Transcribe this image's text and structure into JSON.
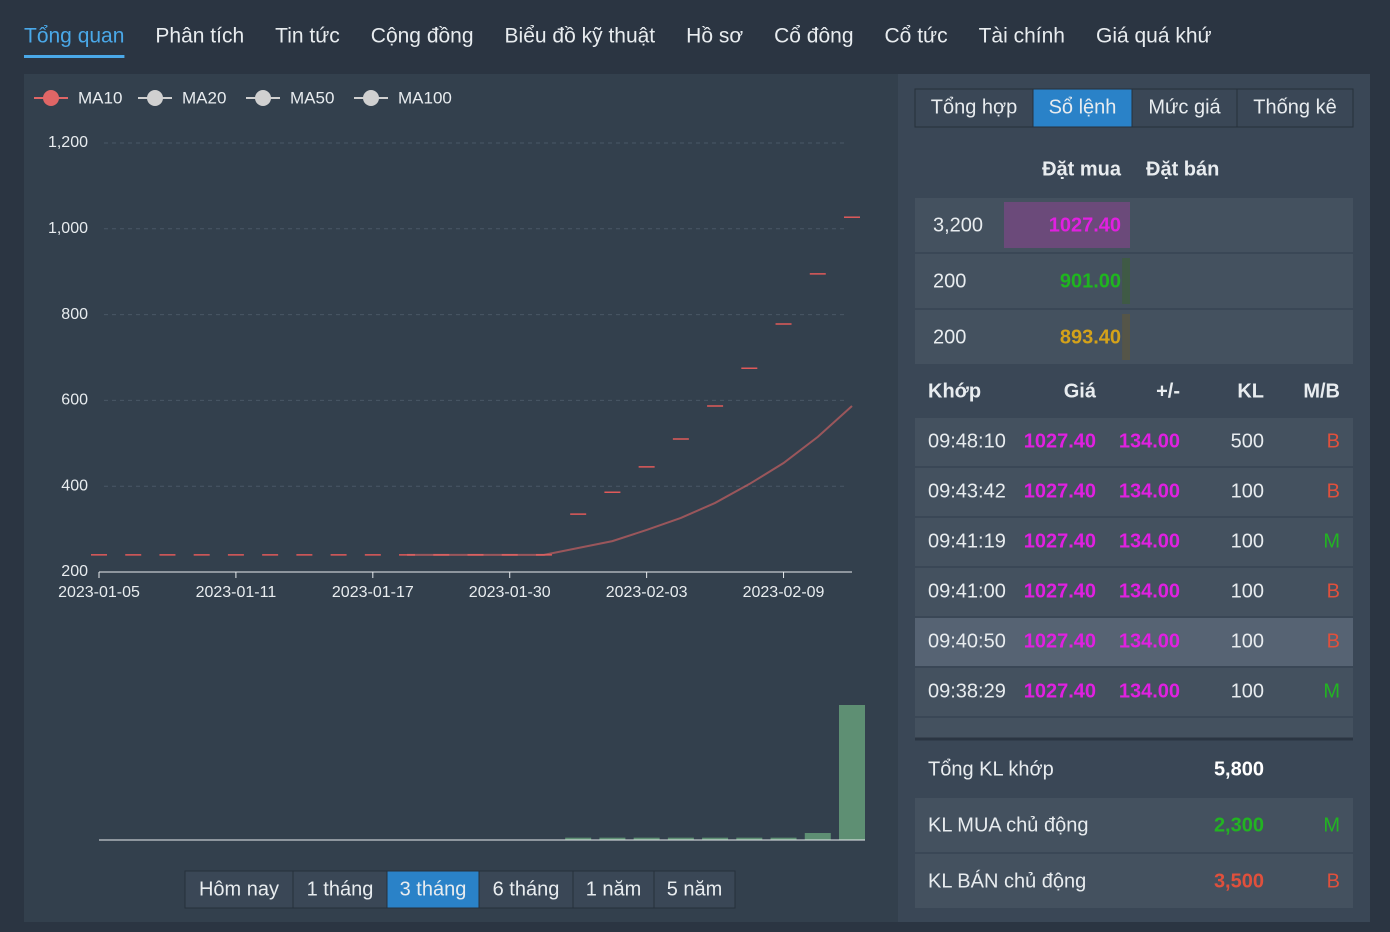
{
  "tabs": {
    "items": [
      "Tổng quan",
      "Phân tích",
      "Tin tức",
      "Cộng đồng",
      "Biểu đồ kỹ thuật",
      "Hồ sơ",
      "Cổ đông",
      "Cổ tức",
      "Tài chính",
      "Giá quá khứ"
    ],
    "active": 0
  },
  "chart_data": {
    "type": "line",
    "categories": [
      "2023-01-05",
      null,
      null,
      null,
      "2023-01-11",
      null,
      null,
      null,
      "2023-01-17",
      null,
      null,
      null,
      "2023-01-30",
      null,
      null,
      null,
      "2023-02-03",
      null,
      null,
      null,
      "2023-02-09",
      null,
      null
    ],
    "values": [
      240,
      240,
      240,
      240,
      240,
      240,
      240,
      240,
      240,
      240,
      240,
      240,
      240,
      240,
      335,
      386,
      445,
      510,
      587,
      675,
      778,
      895,
      1027
    ],
    "color": "#e05a5a",
    "series": [
      {
        "name": "MA10",
        "color": "#e06666",
        "values": [
          null,
          null,
          null,
          null,
          null,
          null,
          null,
          null,
          null,
          240,
          240,
          240,
          240,
          240,
          256,
          272,
          298,
          326,
          361,
          405,
          454,
          515,
          587
        ]
      },
      {
        "name": "MA20",
        "color": "#d0d0d0",
        "values": [
          null,
          null,
          null,
          null,
          null,
          null,
          null,
          null,
          null,
          null,
          null,
          null,
          null,
          null,
          null,
          null,
          null,
          null,
          null,
          null,
          null,
          null,
          null
        ]
      },
      {
        "name": "MA50",
        "color": "#d0d0d0",
        "values": [
          null,
          null,
          null,
          null,
          null,
          null,
          null,
          null,
          null,
          null,
          null,
          null,
          null,
          null,
          null,
          null,
          null,
          null,
          null,
          null,
          null,
          null,
          null
        ]
      },
      {
        "name": "MA100",
        "color": "#d0d0d0",
        "values": [
          null,
          null,
          null,
          null,
          null,
          null,
          null,
          null,
          null,
          null,
          null,
          null,
          null,
          null,
          null,
          null,
          null,
          null,
          null,
          null,
          null,
          null,
          null
        ]
      }
    ],
    "ylim": [
      200,
      1200
    ],
    "yticks": [
      200,
      400,
      600,
      800,
      {
        "value": 1000,
        "label": "1,000"
      },
      {
        "value": 1200,
        "label": "1,200"
      }
    ],
    "grid": true,
    "volume": [
      0,
      0,
      0,
      0,
      0,
      0,
      0,
      0,
      0,
      0,
      0,
      0,
      0,
      0,
      100,
      100,
      100,
      100,
      100,
      100,
      100,
      300,
      5800
    ],
    "volume_color": "#5e8f73",
    "volume_lim": [
      0,
      5800
    ]
  },
  "range_buttons": {
    "items": [
      "Hôm nay",
      "1 tháng",
      "3 tháng",
      "6 tháng",
      "1 năm",
      "5 năm"
    ],
    "active": 2
  },
  "panel": {
    "tabs": {
      "items": [
        "Tổng hợp",
        "Sổ lệnh",
        "Mức giá",
        "Thống kê"
      ],
      "active": 1
    },
    "book_headers": [
      "Đặt mua",
      "Đặt bán"
    ],
    "orders": [
      {
        "volume": 3200,
        "volume_label": "3,200",
        "price": "1027.40",
        "color": "#e020e0",
        "bar": "#6b4a7a"
      },
      {
        "volume": 200,
        "volume_label": "200",
        "price": "901.00",
        "color": "#1fb51f",
        "bar": "#3f5a45"
      },
      {
        "volume": 200,
        "volume_label": "200",
        "price": "893.40",
        "color": "#d4a21a",
        "bar": "#555548"
      }
    ],
    "trade_headers": [
      "Khớp",
      "Giá",
      "+/-",
      "KL",
      "M/B"
    ],
    "trades": [
      {
        "time": "09:48:10",
        "price": "1027.40",
        "change": "134.00",
        "volume": "500",
        "side": "B"
      },
      {
        "time": "09:43:42",
        "price": "1027.40",
        "change": "134.00",
        "volume": "100",
        "side": "B"
      },
      {
        "time": "09:41:19",
        "price": "1027.40",
        "change": "134.00",
        "volume": "100",
        "side": "M"
      },
      {
        "time": "09:41:00",
        "price": "1027.40",
        "change": "134.00",
        "volume": "100",
        "side": "B"
      },
      {
        "time": "09:40:50",
        "price": "1027.40",
        "change": "134.00",
        "volume": "100",
        "side": "B"
      },
      {
        "time": "09:38:29",
        "price": "1027.40",
        "change": "134.00",
        "volume": "100",
        "side": "M"
      }
    ],
    "trade_color": "#e020e0",
    "highlight": 4,
    "side_colors": {
      "B": "#e0503c",
      "M": "#22b422"
    },
    "totals": [
      {
        "label": "Tổng KL khớp",
        "value": "5,800",
        "color": "#ffffff"
      },
      {
        "label": "KL MUA chủ động",
        "value": "2,300",
        "color": "#22b422",
        "side": "M"
      },
      {
        "label": "KL BÁN chủ động",
        "value": "3,500",
        "color": "#e0503c",
        "side": "B"
      }
    ]
  }
}
